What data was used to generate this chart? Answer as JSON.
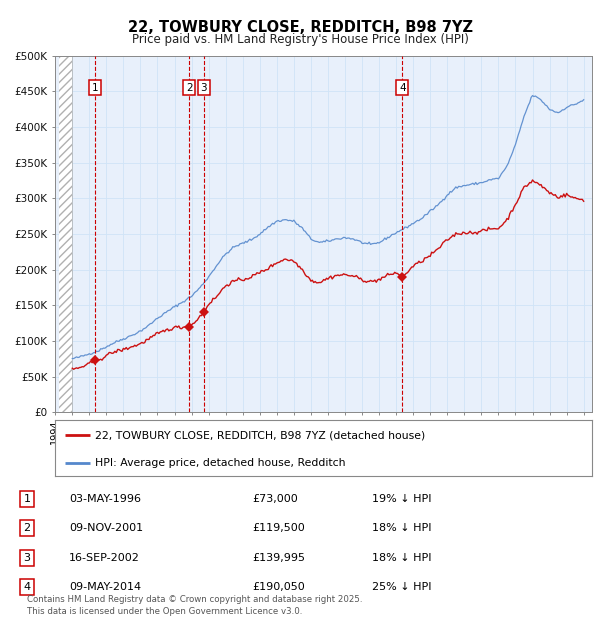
{
  "title": "22, TOWBURY CLOSE, REDDITCH, B98 7YZ",
  "subtitle": "Price paid vs. HM Land Registry's House Price Index (HPI)",
  "ylim": [
    0,
    500000
  ],
  "yticks": [
    0,
    50000,
    100000,
    150000,
    200000,
    250000,
    300000,
    350000,
    400000,
    450000,
    500000
  ],
  "xlim_start": 1994.25,
  "xlim_end": 2025.5,
  "hpi_color": "#5588cc",
  "price_color": "#cc1111",
  "grid_color": "#d0e4f7",
  "vline_color": "#cc0000",
  "transactions": [
    {
      "date_num": 1996.34,
      "price": 73000,
      "label": "1"
    },
    {
      "date_num": 2001.86,
      "price": 119500,
      "label": "2"
    },
    {
      "date_num": 2002.71,
      "price": 139995,
      "label": "3"
    },
    {
      "date_num": 2014.36,
      "price": 190050,
      "label": "4"
    }
  ],
  "table_rows": [
    {
      "num": "1",
      "date": "03-MAY-1996",
      "price": "£73,000",
      "note": "19% ↓ HPI"
    },
    {
      "num": "2",
      "date": "09-NOV-2001",
      "price": "£119,500",
      "note": "18% ↓ HPI"
    },
    {
      "num": "3",
      "date": "16-SEP-2002",
      "price": "£139,995",
      "note": "18% ↓ HPI"
    },
    {
      "num": "4",
      "date": "09-MAY-2014",
      "price": "£190,050",
      "note": "25% ↓ HPI"
    }
  ],
  "legend_price_label": "22, TOWBURY CLOSE, REDDITCH, B98 7YZ (detached house)",
  "legend_hpi_label": "HPI: Average price, detached house, Redditch",
  "footer": "Contains HM Land Registry data © Crown copyright and database right 2025.\nThis data is licensed under the Open Government Licence v3.0.",
  "bg_color": "#ffffff",
  "plot_bg_color": "#e8f0fb"
}
